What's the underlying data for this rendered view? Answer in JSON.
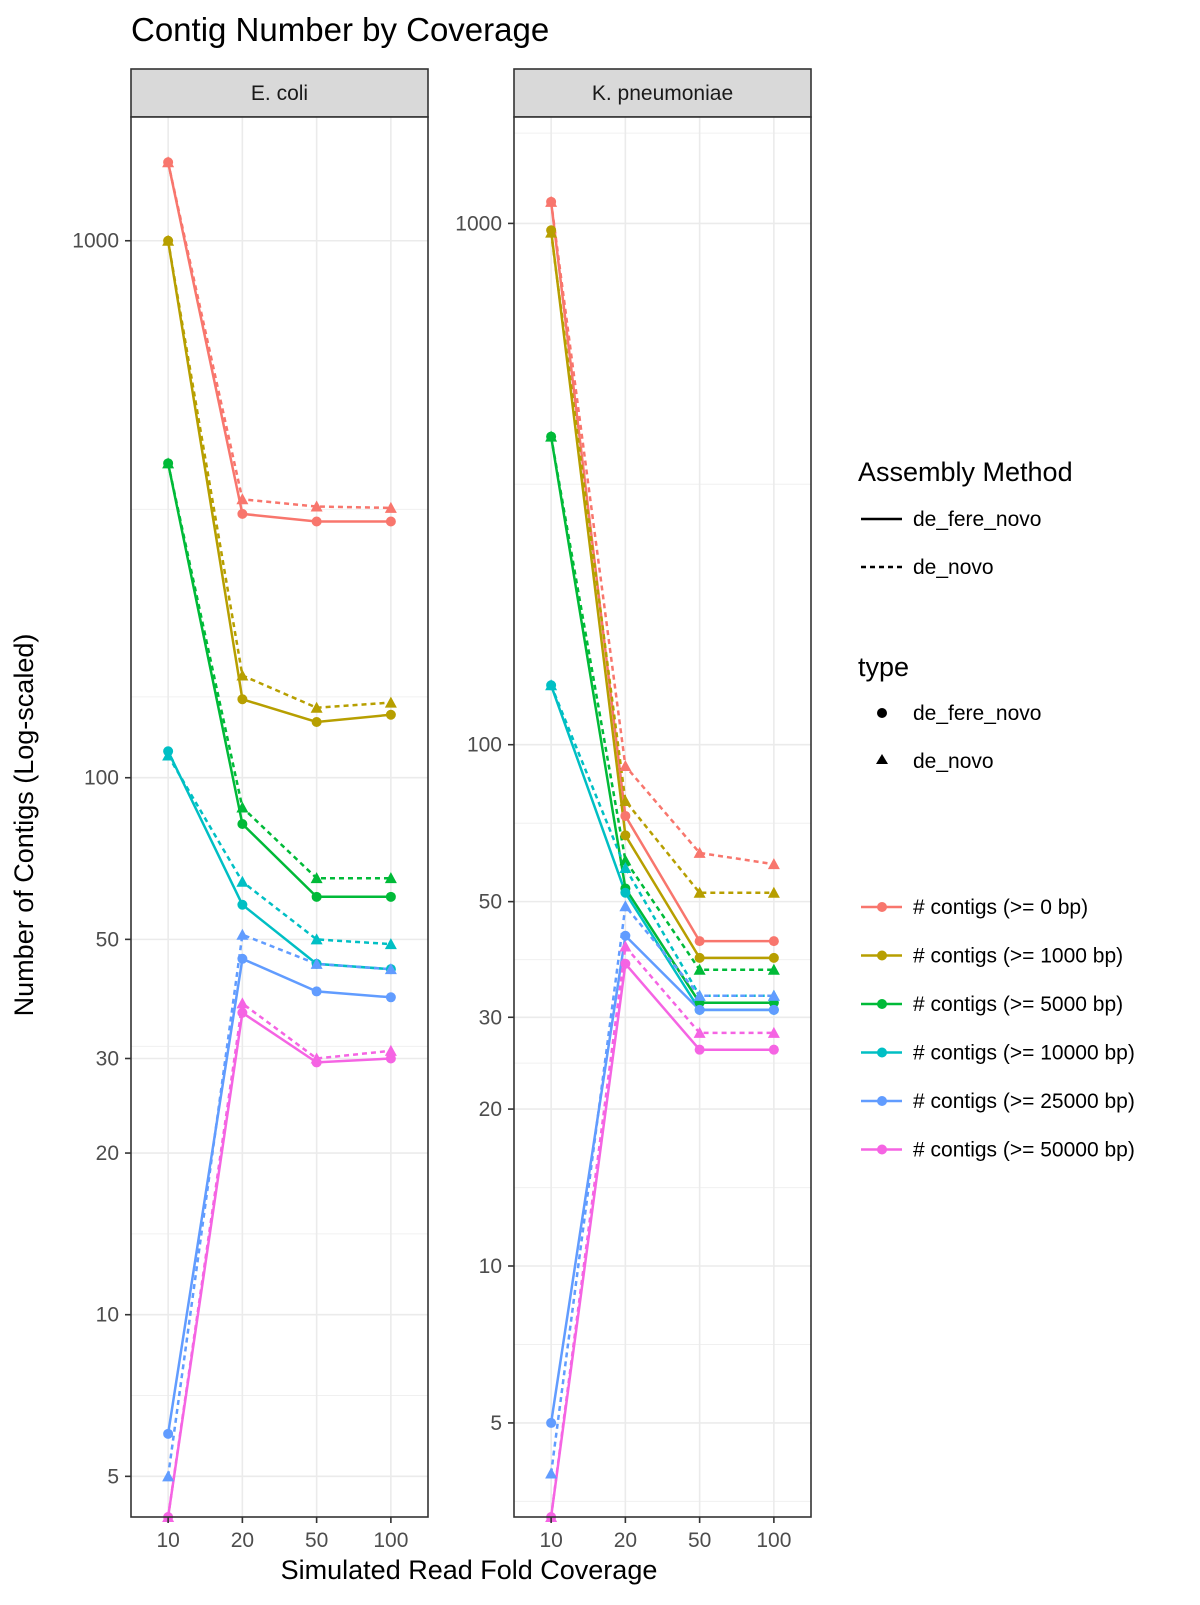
{
  "chart_data": {
    "type": "line",
    "title": "Contig Number by Coverage",
    "xlabel": "Simulated Read Fold Coverage",
    "ylabel": "Number of Contigs (Log-scaled)",
    "x": [
      "10",
      "20",
      "50",
      "100"
    ],
    "y_scale": "log",
    "grid": true,
    "legend_position": "right",
    "legends": {
      "method": {
        "title": "Assembly Method",
        "entries": [
          {
            "label": "de_fere_novo",
            "linetype": "solid"
          },
          {
            "label": "de_novo",
            "linetype": "dashed"
          }
        ]
      },
      "type": {
        "title": "type",
        "entries": [
          {
            "label": "de_fere_novo",
            "shape": "circle"
          },
          {
            "label": "de_novo",
            "shape": "triangle"
          }
        ]
      },
      "color": {
        "title": "",
        "entries": [
          {
            "label": "# contigs (>= 0 bp)",
            "color": "#F8766D"
          },
          {
            "label": "# contigs (>= 1000 bp)",
            "color": "#B79F00"
          },
          {
            "label": "# contigs (>= 5000 bp)",
            "color": "#00BA38"
          },
          {
            "label": "# contigs (>= 10000 bp)",
            "color": "#00BFC4"
          },
          {
            "label": "# contigs (>= 25000 bp)",
            "color": "#619CFF"
          },
          {
            "label": "# contigs (>= 50000 bp)",
            "color": "#F564E3"
          }
        ]
      }
    },
    "panels": [
      {
        "strip": "E. coli",
        "ylim": [
          4.2,
          1700
        ],
        "yticks": [
          {
            "value": 5,
            "label": "5"
          },
          {
            "value": 10,
            "label": "10"
          },
          {
            "value": 20,
            "label": "20"
          },
          {
            "value": 30,
            "label": "30"
          },
          {
            "value": 50,
            "label": "50"
          },
          {
            "value": 100,
            "label": "100"
          },
          {
            "value": 1000,
            "label": "1000"
          }
        ],
        "yminor": [
          7.07,
          14.14,
          31.6,
          141.4,
          316
        ],
        "series": [
          {
            "color_index": 0,
            "method": "de_fere_novo",
            "values": [
              1400,
              310,
              300,
              300
            ]
          },
          {
            "color_index": 0,
            "method": "de_novo",
            "values": [
              1400,
              330,
              320,
              318
            ]
          },
          {
            "color_index": 1,
            "method": "de_fere_novo",
            "values": [
              1000,
              140,
              127,
              131
            ]
          },
          {
            "color_index": 1,
            "method": "de_novo",
            "values": [
              1000,
              155,
              135,
              138
            ]
          },
          {
            "color_index": 2,
            "method": "de_fere_novo",
            "values": [
              385,
              82,
              60,
              60
            ]
          },
          {
            "color_index": 2,
            "method": "de_novo",
            "values": [
              385,
              88,
              65,
              65
            ]
          },
          {
            "color_index": 3,
            "method": "de_fere_novo",
            "values": [
              112,
              58,
              45,
              44
            ]
          },
          {
            "color_index": 3,
            "method": "de_novo",
            "values": [
              110,
              64,
              50,
              49
            ]
          },
          {
            "color_index": 4,
            "method": "de_fere_novo",
            "values": [
              6,
              46,
              40,
              39
            ]
          },
          {
            "color_index": 4,
            "method": "de_novo",
            "values": [
              5,
              51,
              45,
              44
            ]
          },
          {
            "color_index": 5,
            "method": "de_fere_novo",
            "values": [
              4.2,
              36.5,
              29.5,
              30
            ]
          },
          {
            "color_index": 5,
            "method": "de_novo",
            "values": [
              4.2,
              38,
              30,
              31
            ]
          }
        ]
      },
      {
        "strip": "K. pneumoniae",
        "ylim": [
          3.3,
          1600
        ],
        "yticks": [
          {
            "value": 5,
            "label": "5"
          },
          {
            "value": 10,
            "label": "10"
          },
          {
            "value": 20,
            "label": "20"
          },
          {
            "value": 30,
            "label": "30"
          },
          {
            "value": 50,
            "label": "50"
          },
          {
            "value": 100,
            "label": "100"
          },
          {
            "value": 1000,
            "label": "1000"
          }
        ],
        "yminor": [
          3.535,
          7.07,
          14.14,
          24.5,
          38.7,
          70.7,
          316,
          1490
        ],
        "series": [
          {
            "color_index": 0,
            "method": "de_fere_novo",
            "values": [
              1100,
              73,
              42,
              42
            ]
          },
          {
            "color_index": 0,
            "method": "de_novo",
            "values": [
              1100,
              91,
              62,
              59
            ]
          },
          {
            "color_index": 1,
            "method": "de_fere_novo",
            "values": [
              970,
              67,
              39,
              39
            ]
          },
          {
            "color_index": 1,
            "method": "de_novo",
            "values": [
              960,
              78,
              52,
              52
            ]
          },
          {
            "color_index": 2,
            "method": "de_fere_novo",
            "values": [
              390,
              53,
              32,
              32
            ]
          },
          {
            "color_index": 2,
            "method": "de_novo",
            "values": [
              390,
              60,
              37,
              37
            ]
          },
          {
            "color_index": 3,
            "method": "de_fere_novo",
            "values": [
              130,
              52,
              31,
              31
            ]
          },
          {
            "color_index": 3,
            "method": "de_novo",
            "values": [
              130,
              58,
              33,
              33
            ]
          },
          {
            "color_index": 4,
            "method": "de_fere_novo",
            "values": [
              5,
              43,
              31,
              31
            ]
          },
          {
            "color_index": 4,
            "method": "de_novo",
            "values": [
              4,
              49,
              33,
              33
            ]
          },
          {
            "color_index": 5,
            "method": "de_fere_novo",
            "values": [
              3.3,
              38,
              26,
              26
            ]
          },
          {
            "color_index": 5,
            "method": "de_novo",
            "values": [
              3.3,
              41,
              28,
              28
            ]
          }
        ]
      }
    ]
  }
}
